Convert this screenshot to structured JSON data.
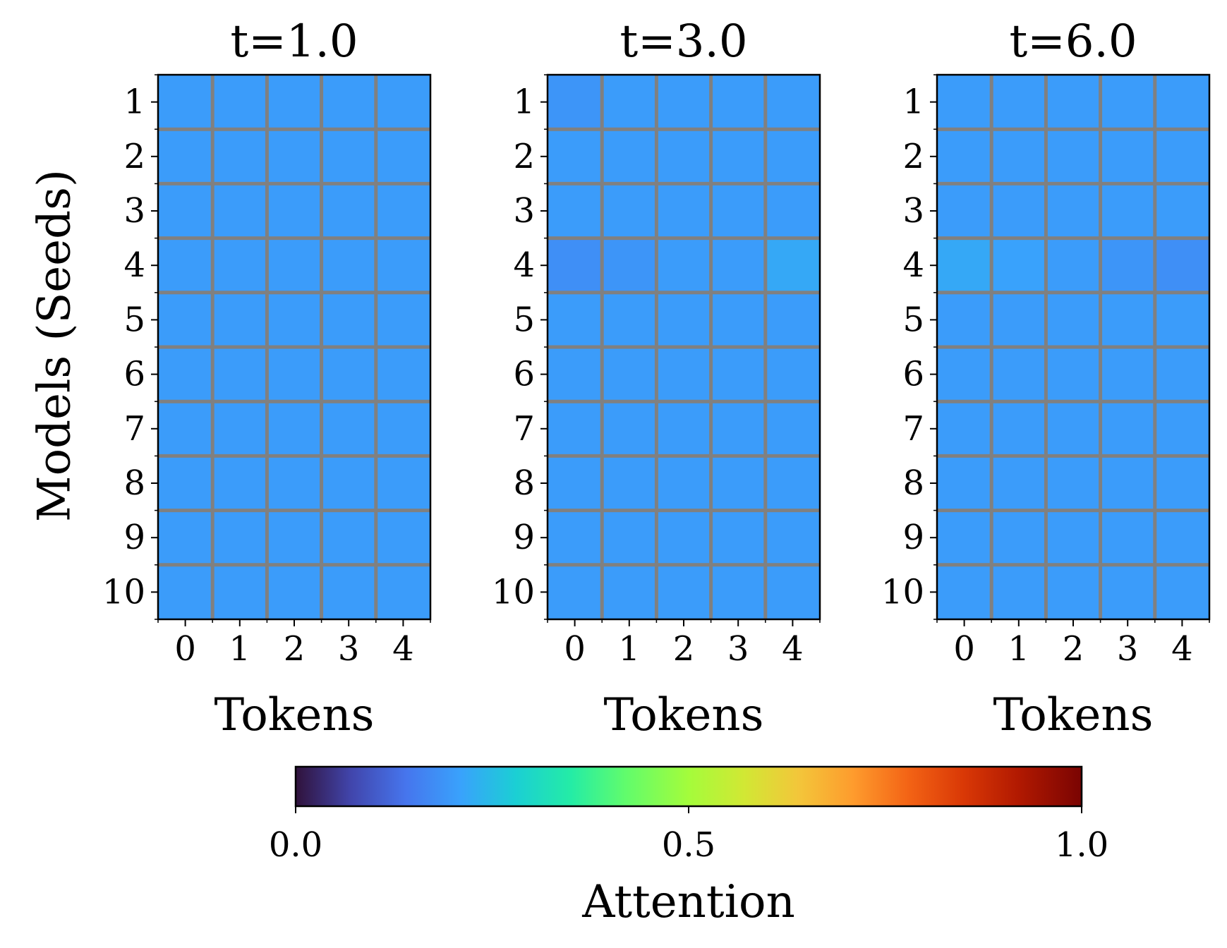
{
  "chart_data": {
    "type": "heatmap",
    "ylabel": "Models (Seeds)",
    "colorbar": {
      "label": "Attention",
      "colormap": "turbo",
      "range": [
        0,
        1
      ],
      "ticks": [
        "0.0",
        "0.5",
        "1.0"
      ]
    },
    "panels": [
      {
        "title": "t=1.0",
        "xlabel": "Tokens",
        "x_categories": [
          "0",
          "1",
          "2",
          "3",
          "4"
        ],
        "y_categories": [
          "1",
          "2",
          "3",
          "4",
          "5",
          "6",
          "7",
          "8",
          "9",
          "10"
        ],
        "values": [
          [
            0.2,
            0.2,
            0.2,
            0.2,
            0.2
          ],
          [
            0.2,
            0.2,
            0.2,
            0.2,
            0.2
          ],
          [
            0.2,
            0.2,
            0.2,
            0.2,
            0.2
          ],
          [
            0.2,
            0.2,
            0.2,
            0.2,
            0.2
          ],
          [
            0.2,
            0.2,
            0.2,
            0.2,
            0.2
          ],
          [
            0.2,
            0.2,
            0.2,
            0.2,
            0.2
          ],
          [
            0.2,
            0.2,
            0.2,
            0.2,
            0.2
          ],
          [
            0.2,
            0.2,
            0.2,
            0.2,
            0.2
          ],
          [
            0.2,
            0.2,
            0.2,
            0.2,
            0.2
          ],
          [
            0.2,
            0.2,
            0.2,
            0.2,
            0.2
          ]
        ]
      },
      {
        "title": "t=3.0",
        "xlabel": "Tokens",
        "x_categories": [
          "0",
          "1",
          "2",
          "3",
          "4"
        ],
        "y_categories": [
          "1",
          "2",
          "3",
          "4",
          "5",
          "6",
          "7",
          "8",
          "9",
          "10"
        ],
        "values": [
          [
            0.19,
            0.2,
            0.2,
            0.2,
            0.2
          ],
          [
            0.2,
            0.2,
            0.2,
            0.2,
            0.2
          ],
          [
            0.2,
            0.2,
            0.2,
            0.2,
            0.2
          ],
          [
            0.18,
            0.19,
            0.2,
            0.2,
            0.22
          ],
          [
            0.2,
            0.2,
            0.2,
            0.2,
            0.2
          ],
          [
            0.2,
            0.2,
            0.2,
            0.2,
            0.2
          ],
          [
            0.2,
            0.2,
            0.2,
            0.2,
            0.2
          ],
          [
            0.2,
            0.2,
            0.2,
            0.2,
            0.2
          ],
          [
            0.2,
            0.2,
            0.2,
            0.2,
            0.2
          ],
          [
            0.2,
            0.2,
            0.2,
            0.2,
            0.2
          ]
        ]
      },
      {
        "title": "t=6.0",
        "xlabel": "Tokens",
        "x_categories": [
          "0",
          "1",
          "2",
          "3",
          "4"
        ],
        "y_categories": [
          "1",
          "2",
          "3",
          "4",
          "5",
          "6",
          "7",
          "8",
          "9",
          "10"
        ],
        "values": [
          [
            0.2,
            0.2,
            0.2,
            0.2,
            0.2
          ],
          [
            0.2,
            0.2,
            0.2,
            0.2,
            0.2
          ],
          [
            0.2,
            0.2,
            0.2,
            0.2,
            0.2
          ],
          [
            0.22,
            0.21,
            0.2,
            0.19,
            0.18
          ],
          [
            0.2,
            0.2,
            0.2,
            0.2,
            0.2
          ],
          [
            0.2,
            0.2,
            0.2,
            0.2,
            0.2
          ],
          [
            0.2,
            0.2,
            0.2,
            0.2,
            0.2
          ],
          [
            0.2,
            0.2,
            0.2,
            0.2,
            0.2
          ],
          [
            0.2,
            0.2,
            0.2,
            0.2,
            0.2
          ],
          [
            0.2,
            0.2,
            0.2,
            0.2,
            0.2
          ]
        ]
      }
    ]
  },
  "colors": {
    "cell_border": "#808080",
    "axis": "#000000"
  }
}
